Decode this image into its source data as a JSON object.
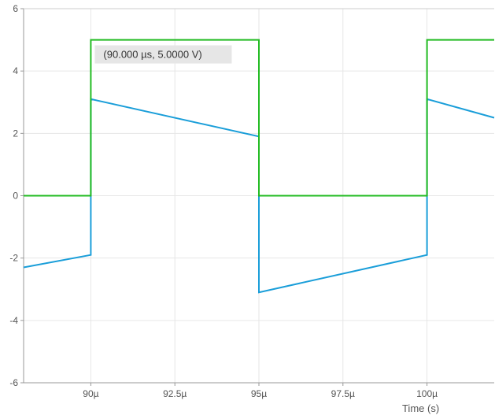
{
  "chart_data": {
    "type": "line",
    "xlabel": "Time (s)",
    "ylabel": "",
    "xlim": [
      88,
      102
    ],
    "ylim": [
      -6,
      6
    ],
    "grid": true,
    "x_ticks": [
      90,
      92.5,
      95,
      97.5,
      100
    ],
    "x_tick_labels": [
      "90µ",
      "92.5µ",
      "95µ",
      "97.5µ",
      "100µ"
    ],
    "y_ticks": [
      -6,
      -4,
      -2,
      0,
      2,
      4,
      6
    ],
    "y_tick_labels": [
      "-6",
      "-4",
      "-2",
      "0",
      "2",
      "4",
      "6"
    ],
    "series": [
      {
        "color": "#22bb22",
        "x": [
          88,
          90,
          90,
          95,
          95,
          100,
          100,
          102
        ],
        "y": [
          0,
          0,
          5,
          5,
          0,
          0,
          5,
          5
        ]
      },
      {
        "color": "#1a9ed9",
        "x": [
          88,
          90,
          90,
          95,
          95,
          100,
          100,
          102
        ],
        "y": [
          -2.3,
          -1.9,
          3.1,
          1.9,
          -3.1,
          -1.9,
          3.1,
          2.5
        ]
      }
    ],
    "annotation": {
      "text": "(90.000 µs, 5.0000 V)",
      "x": 90,
      "y": 5
    }
  }
}
